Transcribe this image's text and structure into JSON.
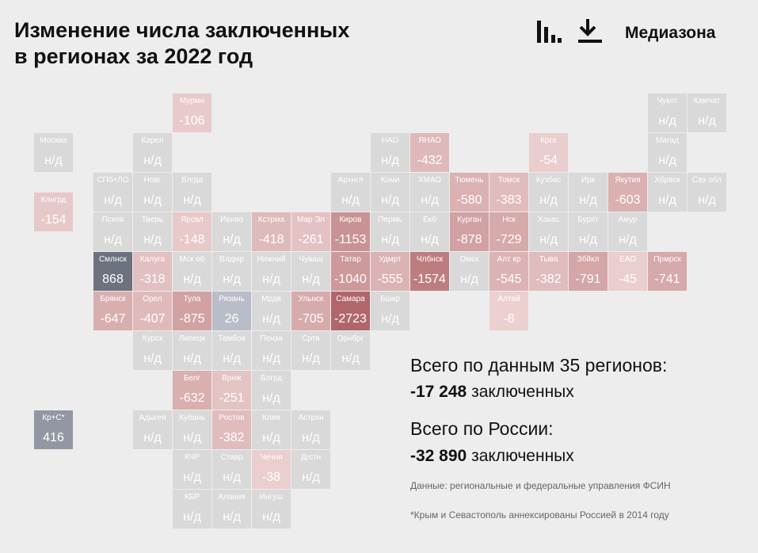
{
  "header": {
    "title_line1": "Изменение числа заключенных",
    "title_line2": "в регионах за 2022 год",
    "brand": "Медиазона"
  },
  "tiles": [
    {
      "name": "Мурмн",
      "value": "-106"
    },
    {
      "name": "Чукот",
      "value": "н/д"
    },
    {
      "name": "Камчат",
      "value": "н/д"
    },
    {
      "name": "Москва",
      "value": "н/д"
    },
    {
      "name": "Карел",
      "value": "н/д"
    },
    {
      "name": "НАО",
      "value": "н/д"
    },
    {
      "name": "ЯНАО",
      "value": "-432"
    },
    {
      "name": "Крск",
      "value": "-54"
    },
    {
      "name": "Магад",
      "value": "н/д"
    },
    {
      "name": "СПб+ЛО",
      "value": "н/д"
    },
    {
      "name": "Новг",
      "value": "н/д"
    },
    {
      "name": "Влгда",
      "value": "н/д"
    },
    {
      "name": "Архнгл",
      "value": "н/д"
    },
    {
      "name": "Коми",
      "value": "н/д"
    },
    {
      "name": "ХМАО",
      "value": "н/д"
    },
    {
      "name": "Тюмень",
      "value": "-580"
    },
    {
      "name": "Томск",
      "value": "-383"
    },
    {
      "name": "Кузбас",
      "value": "н/д"
    },
    {
      "name": "Ирк",
      "value": "н/д"
    },
    {
      "name": "Якутия",
      "value": "-603"
    },
    {
      "name": "Хбрвск",
      "value": "н/д"
    },
    {
      "name": "Сах обл",
      "value": "н/д"
    },
    {
      "name": "Клнгрд",
      "value": "-154"
    },
    {
      "name": "Псков",
      "value": "н/д"
    },
    {
      "name": "Тверь",
      "value": "н/д"
    },
    {
      "name": "Ярсвл",
      "value": "-148"
    },
    {
      "name": "Ивнво",
      "value": "н/д"
    },
    {
      "name": "Кстрма",
      "value": "-418"
    },
    {
      "name": "Мар Эл",
      "value": "-261"
    },
    {
      "name": "Киров",
      "value": "-1153"
    },
    {
      "name": "Пермь",
      "value": "н/д"
    },
    {
      "name": "Екб",
      "value": "н/д"
    },
    {
      "name": "Курган",
      "value": "-878"
    },
    {
      "name": "Нск",
      "value": "-729"
    },
    {
      "name": "Хакас",
      "value": "н/д"
    },
    {
      "name": "Бурят",
      "value": "н/д"
    },
    {
      "name": "Амур",
      "value": "н/д"
    },
    {
      "name": "Смлнск",
      "value": "868"
    },
    {
      "name": "Калуга",
      "value": "-318"
    },
    {
      "name": "Мск об",
      "value": "н/д"
    },
    {
      "name": "Влдмр",
      "value": "н/д"
    },
    {
      "name": "Нижний",
      "value": "н/д"
    },
    {
      "name": "Чуваш",
      "value": "н/д"
    },
    {
      "name": "Татар",
      "value": "-1040"
    },
    {
      "name": "Удмрт",
      "value": "-555"
    },
    {
      "name": "Члбнск",
      "value": "-1574"
    },
    {
      "name": "Омск",
      "value": "н/д"
    },
    {
      "name": "Алт кр",
      "value": "-545"
    },
    {
      "name": "Тыва",
      "value": "-382"
    },
    {
      "name": "Збйкл",
      "value": "-791"
    },
    {
      "name": "ЕАО",
      "value": "-45"
    },
    {
      "name": "Прмрск",
      "value": "-741"
    },
    {
      "name": "Брянск",
      "value": "-647"
    },
    {
      "name": "Орел",
      "value": "-407"
    },
    {
      "name": "Тула",
      "value": "-875"
    },
    {
      "name": "Рязань",
      "value": "26"
    },
    {
      "name": "Мрдв",
      "value": "н/д"
    },
    {
      "name": "Ульнск",
      "value": "-705"
    },
    {
      "name": "Самара",
      "value": "-2723"
    },
    {
      "name": "Бшкр",
      "value": "н/д"
    },
    {
      "name": "Алтай",
      "value": "-8"
    },
    {
      "name": "Курск",
      "value": "н/д"
    },
    {
      "name": "Липецк",
      "value": "н/д"
    },
    {
      "name": "Тамбов",
      "value": "н/д"
    },
    {
      "name": "Пенза",
      "value": "н/д"
    },
    {
      "name": "Сртв",
      "value": "н/д"
    },
    {
      "name": "Орнбрг",
      "value": "н/д"
    },
    {
      "name": "Белг",
      "value": "-632"
    },
    {
      "name": "Врнж",
      "value": "-251"
    },
    {
      "name": "Влгрд",
      "value": "н/д"
    },
    {
      "name": "Кр+С*",
      "value": "416"
    },
    {
      "name": "Адыгея",
      "value": "н/д"
    },
    {
      "name": "Кубань",
      "value": "н/д"
    },
    {
      "name": "Ростов",
      "value": "-382"
    },
    {
      "name": "Клмк",
      "value": "н/д"
    },
    {
      "name": "Астрхн",
      "value": "н/д"
    },
    {
      "name": "КЧР",
      "value": "н/д"
    },
    {
      "name": "Ставр",
      "value": "н/д"
    },
    {
      "name": "Чечня",
      "value": "-38"
    },
    {
      "name": "Дгстн",
      "value": "н/д"
    },
    {
      "name": "КБР",
      "value": "н/д"
    },
    {
      "name": "Алания",
      "value": "н/д"
    },
    {
      "name": "Ингуш",
      "value": "н/д"
    }
  ],
  "summary": {
    "line1": "Всего по данным 35 регионов:",
    "total1": "-17 248",
    "unit1": "заключенных",
    "line2": "Всего по России:",
    "total2": "-32 890",
    "unit2": "заключенных",
    "source": "Данные: региональные и федеральные управления ФСИН",
    "note": "*Крым и Севастополь аннексированы Россией в 2014 году"
  }
}
